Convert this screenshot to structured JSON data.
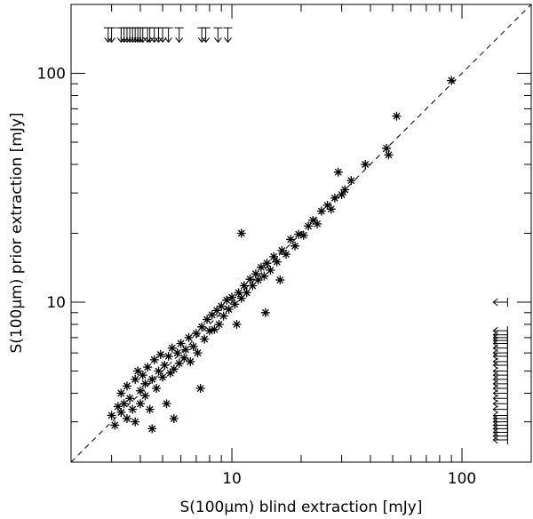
{
  "chart_data": {
    "type": "scatter",
    "xlabel": "S(100μm) blind extraction [mJy]",
    "ylabel": "S(100μm) prior extraction [mJy]",
    "xscale": "log",
    "yscale": "log",
    "xlim": [
      2,
      200
    ],
    "ylim": [
      2,
      200
    ],
    "xticks": [
      10,
      100
    ],
    "yticks": [
      10,
      100
    ],
    "xminor_ticks": [
      2,
      3,
      4,
      5,
      6,
      7,
      8,
      9,
      20,
      30,
      40,
      50,
      60,
      70,
      80,
      90
    ],
    "yminor_ticks": [
      2,
      3,
      4,
      5,
      6,
      7,
      8,
      9,
      20,
      30,
      40,
      50,
      60,
      70,
      80,
      90
    ],
    "identity_line": true,
    "color": "#000000",
    "x": [
      3.0,
      3.1,
      3.2,
      3.3,
      3.3,
      3.4,
      3.5,
      3.5,
      3.6,
      3.7,
      3.8,
      3.8,
      3.9,
      4.0,
      4.0,
      4.1,
      4.2,
      4.2,
      4.3,
      4.4,
      4.5,
      4.5,
      4.6,
      4.7,
      4.8,
      4.9,
      5.0,
      5.1,
      5.2,
      5.3,
      5.4,
      5.5,
      5.6,
      5.6,
      5.8,
      5.9,
      6.0,
      6.2,
      6.3,
      6.5,
      6.6,
      6.8,
      7.0,
      7.1,
      7.3,
      7.4,
      7.6,
      7.8,
      8.0,
      8.2,
      8.4,
      8.6,
      8.8,
      9.0,
      9.2,
      9.5,
      9.7,
      10.0,
      10.3,
      10.5,
      10.7,
      11.0,
      11.3,
      11.0,
      11.6,
      12.0,
      12.3,
      12.7,
      13.0,
      13.4,
      13.8,
      14.0,
      14.2,
      14.7,
      15.2,
      15.7,
      16.2,
      16.5,
      17.2,
      18.0,
      18.8,
      19.5,
      20.5,
      21.5,
      22.5,
      23.5,
      24.5,
      26,
      27,
      28,
      29,
      30,
      31,
      33,
      38,
      47,
      48,
      52,
      90
    ],
    "y": [
      3.2,
      2.9,
      3.5,
      3.3,
      4.0,
      3.6,
      3.1,
      4.3,
      3.8,
      3.4,
      4.6,
      3.0,
      5.0,
      4.1,
      3.6,
      4.8,
      3.9,
      4.4,
      5.2,
      3.4,
      4.6,
      2.8,
      5.6,
      4.2,
      5.0,
      5.9,
      4.7,
      5.3,
      3.6,
      5.8,
      4.9,
      6.3,
      5.1,
      3.1,
      6.0,
      5.4,
      6.6,
      5.7,
      6.2,
      7.0,
      5.5,
      6.4,
      7.3,
      6.0,
      4.2,
      7.8,
      6.9,
      8.4,
      7.5,
      8.8,
      7.6,
      9.2,
      8.0,
      9.6,
      8.7,
      10.2,
      9.3,
      10.5,
      9.8,
      8.0,
      11.0,
      10.4,
      11.8,
      20,
      11.0,
      12.6,
      11.8,
      13.3,
      12.5,
      14.2,
      13.0,
      9.0,
      14.8,
      13.8,
      15.8,
      15.0,
      12.5,
      16.8,
      16.2,
      18.8,
      17.6,
      19.8,
      19.6,
      21.5,
      22.8,
      22.0,
      25.0,
      26.5,
      25.5,
      28.5,
      37,
      29.5,
      31,
      34,
      40,
      47,
      44,
      65,
      93
    ],
    "y_upper_limits": {
      "x": [
        2.9,
        3.0,
        3.3,
        3.4,
        3.5,
        3.6,
        3.7,
        3.8,
        3.9,
        4.0,
        4.1,
        4.3,
        4.4,
        4.6,
        4.8,
        5.0,
        5.3,
        5.9,
        7.4,
        7.7,
        8.7,
        9.6
      ],
      "y_level": 147
    },
    "x_upper_limits": {
      "y": [
        10,
        7.5,
        7.2,
        7.0,
        6.8,
        6.6,
        6.3,
        6.0,
        5.8,
        5.5,
        5.3,
        5.0,
        4.8,
        4.6,
        4.4,
        4.2,
        4.0,
        3.8,
        3.6,
        3.4,
        3.2,
        3.1,
        3.0,
        2.9,
        2.8,
        2.7,
        2.6,
        2.5
      ],
      "x_level": 147
    }
  }
}
